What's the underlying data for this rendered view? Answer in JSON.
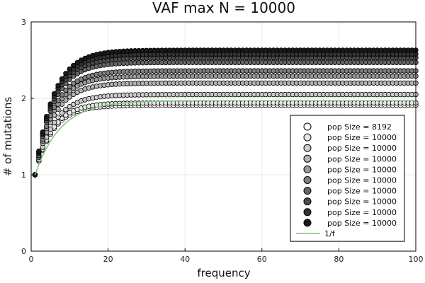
{
  "chart_data": {
    "type": "scatter",
    "title": "VAF max N = 10000",
    "xlabel": "frequency",
    "ylabel": "# of mutations",
    "xlim": [
      0,
      100
    ],
    "ylim": [
      0,
      3
    ],
    "xticks": [
      0,
      20,
      40,
      60,
      80,
      100
    ],
    "yticks": [
      0,
      1,
      2,
      3
    ],
    "grid": true,
    "legend_position": "bottom-right",
    "x": [
      1,
      2,
      3,
      4,
      5,
      6,
      7,
      8,
      9,
      10,
      11,
      12,
      13,
      14,
      15,
      16,
      17,
      18,
      19,
      20,
      21,
      22,
      23,
      24,
      25,
      26,
      27,
      28,
      29,
      30,
      31,
      32,
      33,
      34,
      35,
      36,
      37,
      38,
      39,
      40,
      41,
      42,
      43,
      44,
      45,
      46,
      47,
      48,
      49,
      50,
      51,
      52,
      53,
      54,
      55,
      56,
      57,
      58,
      59,
      60,
      61,
      62,
      63,
      64,
      65,
      66,
      67,
      68,
      69,
      70,
      71,
      72,
      73,
      74,
      75,
      76,
      77,
      78,
      79,
      80,
      81,
      82,
      83,
      84,
      85,
      86,
      87,
      88,
      89,
      90,
      91,
      92,
      93,
      94,
      95,
      96,
      97,
      98,
      99,
      100
    ],
    "series": [
      {
        "name": "pop Size = 8192",
        "color": "#ffffff",
        "plateau": 1.91,
        "rate": 0.22
      },
      {
        "name": "pop Size = 10000",
        "color": "#e6e6e6",
        "plateau": 1.94,
        "rate": 0.22
      },
      {
        "name": "pop Size = 10000",
        "color": "#cccccc",
        "plateau": 2.05,
        "rate": 0.21
      },
      {
        "name": "pop Size = 10000",
        "color": "#b3b3b3",
        "plateau": 2.2,
        "rate": 0.21
      },
      {
        "name": "pop Size = 10000",
        "color": "#9a9a9a",
        "plateau": 2.29,
        "rate": 0.21
      },
      {
        "name": "pop Size = 10000",
        "color": "#808080",
        "plateau": 2.36,
        "rate": 0.21
      },
      {
        "name": "pop Size = 10000",
        "color": "#666666",
        "plateau": 2.47,
        "rate": 0.21
      },
      {
        "name": "pop Size = 10000",
        "color": "#4d4d4d",
        "plateau": 2.53,
        "rate": 0.21
      },
      {
        "name": "pop Size = 10000",
        "color": "#333333",
        "plateau": 2.58,
        "rate": 0.21
      },
      {
        "name": "pop Size = 10000",
        "color": "#1a1a1a",
        "plateau": 2.63,
        "rate": 0.21
      }
    ],
    "reference_line": {
      "name": "1/f",
      "color": "#7fc47f",
      "plateau": 1.97,
      "rate": 0.15
    }
  }
}
